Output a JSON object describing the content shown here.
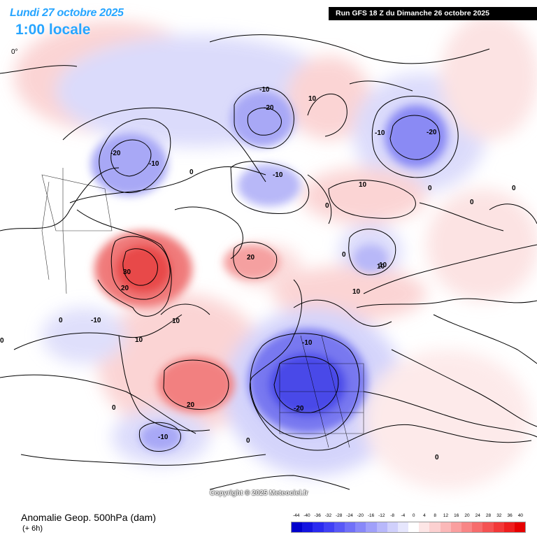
{
  "header": {
    "date_label": "Lundi 27 octobre 2025",
    "time_label": "1:00 locale",
    "run_label": "Run GFS 18 Z du Dimanche 26 octobre 2025"
  },
  "map": {
    "longitude_label": "0°",
    "copyright": "Copyright © 2025 Meteociel.fr",
    "contour_labels": [
      "-20",
      "-10",
      "-20",
      "-10",
      "10",
      "-10",
      "-20",
      "0",
      "-10",
      "0",
      "10",
      "0",
      "0",
      "20",
      "30",
      "20",
      "10",
      "-10",
      "10",
      "10",
      "-10",
      "-20",
      "20",
      "0",
      "-10",
      "0",
      "0",
      "10",
      "0",
      "0",
      "0",
      "10",
      "0"
    ]
  },
  "legend": {
    "title": "Anomalie Geop. 500hPa (dam)",
    "subtitle": "(+ 6h)",
    "scale_values": [
      "-44",
      "-40",
      "-36",
      "-32",
      "-28",
      "-24",
      "-20",
      "-16",
      "-12",
      "-8",
      "-4",
      "0",
      "4",
      "8",
      "12",
      "16",
      "20",
      "24",
      "28",
      "32",
      "36",
      "40"
    ],
    "scale_colors": [
      "#0000cc",
      "#1414e0",
      "#2a2af0",
      "#4040f5",
      "#5858f7",
      "#7070f8",
      "#8888f9",
      "#a0a0fa",
      "#b8b8fb",
      "#d0d0fc",
      "#e6e6fd",
      "#ffffff",
      "#fde6e6",
      "#fcd0d0",
      "#fbb8b8",
      "#fa9f9f",
      "#f88686",
      "#f66c6c",
      "#f45252",
      "#f23838",
      "#ee1e1e",
      "#e60000"
    ]
  }
}
